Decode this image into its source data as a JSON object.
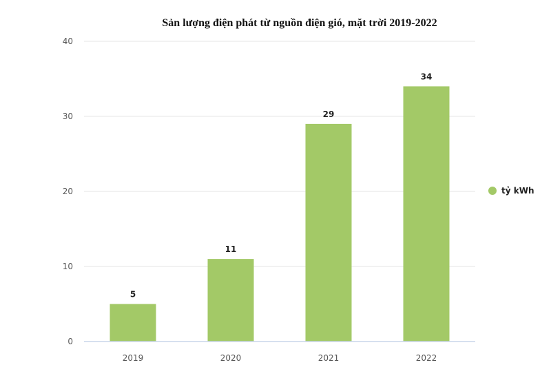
{
  "chart_data": {
    "type": "bar",
    "title": "Sản lượng điện phát từ nguồn điện gió, mặt trời 2019-2022",
    "categories": [
      "2019",
      "2020",
      "2021",
      "2022"
    ],
    "series": [
      {
        "name": "tỷ kWh",
        "values": [
          5,
          11,
          29,
          34
        ],
        "color": "#a3c967"
      }
    ],
    "ylim": [
      0,
      40
    ],
    "yticks": [
      0,
      10,
      20,
      30,
      40
    ],
    "grid": true,
    "data_labels": true,
    "legend_position": "right"
  }
}
